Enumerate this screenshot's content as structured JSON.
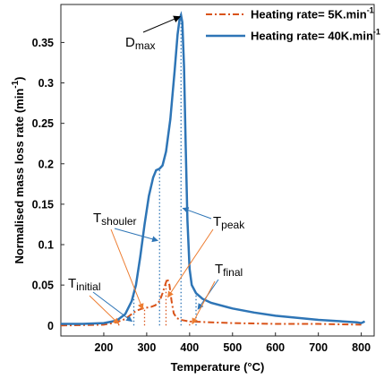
{
  "chart_data": {
    "type": "line",
    "ylabel": [
      "Normalised mass loss rate (min",
      "-1",
      ")"
    ],
    "xlabel": "Temperature (°C)",
    "xlim": [
      100,
      830
    ],
    "xticks": [
      200,
      300,
      400,
      500,
      600,
      700,
      800
    ],
    "ylim": [
      -0.013,
      0.397
    ],
    "yticks": [
      0,
      0.05,
      0.1,
      0.15,
      0.2,
      0.25,
      0.3,
      0.35
    ],
    "legend": "upper right",
    "series": [
      {
        "name": "Heating rate= 5K.min",
        "name_sup": "-1",
        "color": "#d95319",
        "dash": "dashdot",
        "x": [
          100,
          200,
          230,
          250,
          265,
          275,
          290,
          300,
          310,
          320,
          330,
          337,
          343,
          348,
          353,
          358,
          363,
          370,
          380,
          400,
          450,
          500,
          600,
          700,
          800
        ],
        "values": [
          0,
          0.001,
          0.004,
          0.008,
          0.014,
          0.018,
          0.021,
          0.022,
          0.023,
          0.025,
          0.03,
          0.04,
          0.05,
          0.058,
          0.05,
          0.03,
          0.015,
          0.009,
          0.007,
          0.005,
          0.004,
          0.003,
          0.002,
          0.002,
          0.001
        ],
        "marker_x": [
          235,
          295,
          345,
          400
        ]
      },
      {
        "name": "Heating rate= 40K.min",
        "name_sup": "-1",
        "color": "#2e75b6",
        "dash": "solid",
        "x": [
          100,
          150,
          200,
          230,
          250,
          265,
          275,
          285,
          295,
          305,
          315,
          322,
          330,
          337,
          345,
          355,
          365,
          372,
          377,
          380,
          383,
          387,
          391,
          395,
          400,
          405,
          415,
          430,
          450,
          500,
          550,
          600,
          700,
          790,
          800,
          808
        ],
        "values": [
          0.002,
          0.002,
          0.003,
          0.006,
          0.014,
          0.03,
          0.05,
          0.085,
          0.125,
          0.16,
          0.183,
          0.192,
          0.194,
          0.198,
          0.215,
          0.255,
          0.315,
          0.36,
          0.38,
          0.384,
          0.375,
          0.32,
          0.22,
          0.13,
          0.07,
          0.05,
          0.04,
          0.033,
          0.028,
          0.021,
          0.016,
          0.012,
          0.007,
          0.004,
          0.003,
          0.005
        ],
        "marker_x": [
          270,
          330,
          380,
          415
        ]
      }
    ],
    "annotations": [
      {
        "main": "D",
        "sub": "max"
      },
      {
        "main": "T",
        "sub": "shouler"
      },
      {
        "main": "T",
        "sub": "peak"
      },
      {
        "main": "T",
        "sub": "initial"
      },
      {
        "main": "T",
        "sub": "final"
      }
    ]
  }
}
